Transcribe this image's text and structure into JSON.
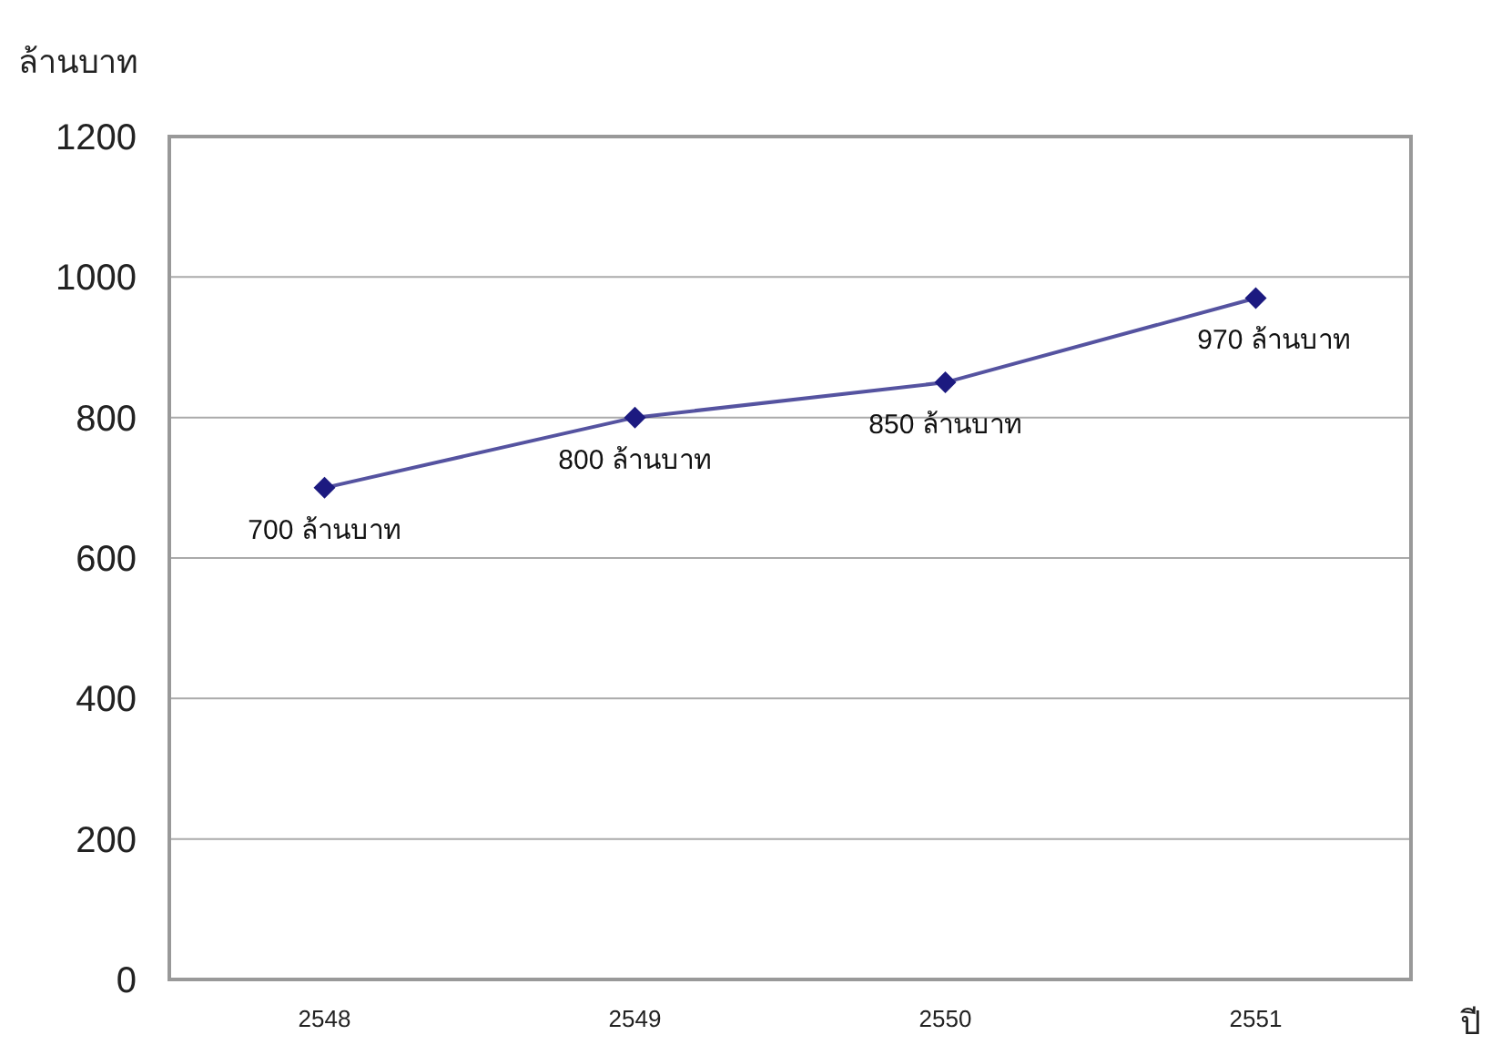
{
  "chart_data": {
    "type": "line",
    "xlabel": "ปี",
    "ylabel": "ล้านบาท",
    "categories": [
      "2548",
      "2549",
      "2550",
      "2551"
    ],
    "series": [
      {
        "color": "#1c1a80",
        "values": [
          700,
          800,
          850,
          970
        ],
        "value_labels": [
          "700 ล้านบาท",
          "800 ล้านบาท",
          "850 ล้านบาท",
          "970 ล้านบาท"
        ]
      }
    ],
    "ylim": [
      0,
      1200
    ],
    "yticks": [
      0,
      200,
      400,
      600,
      800,
      1000,
      1200
    ],
    "grid": "y",
    "marker": "diamond",
    "line_style": "solid"
  }
}
